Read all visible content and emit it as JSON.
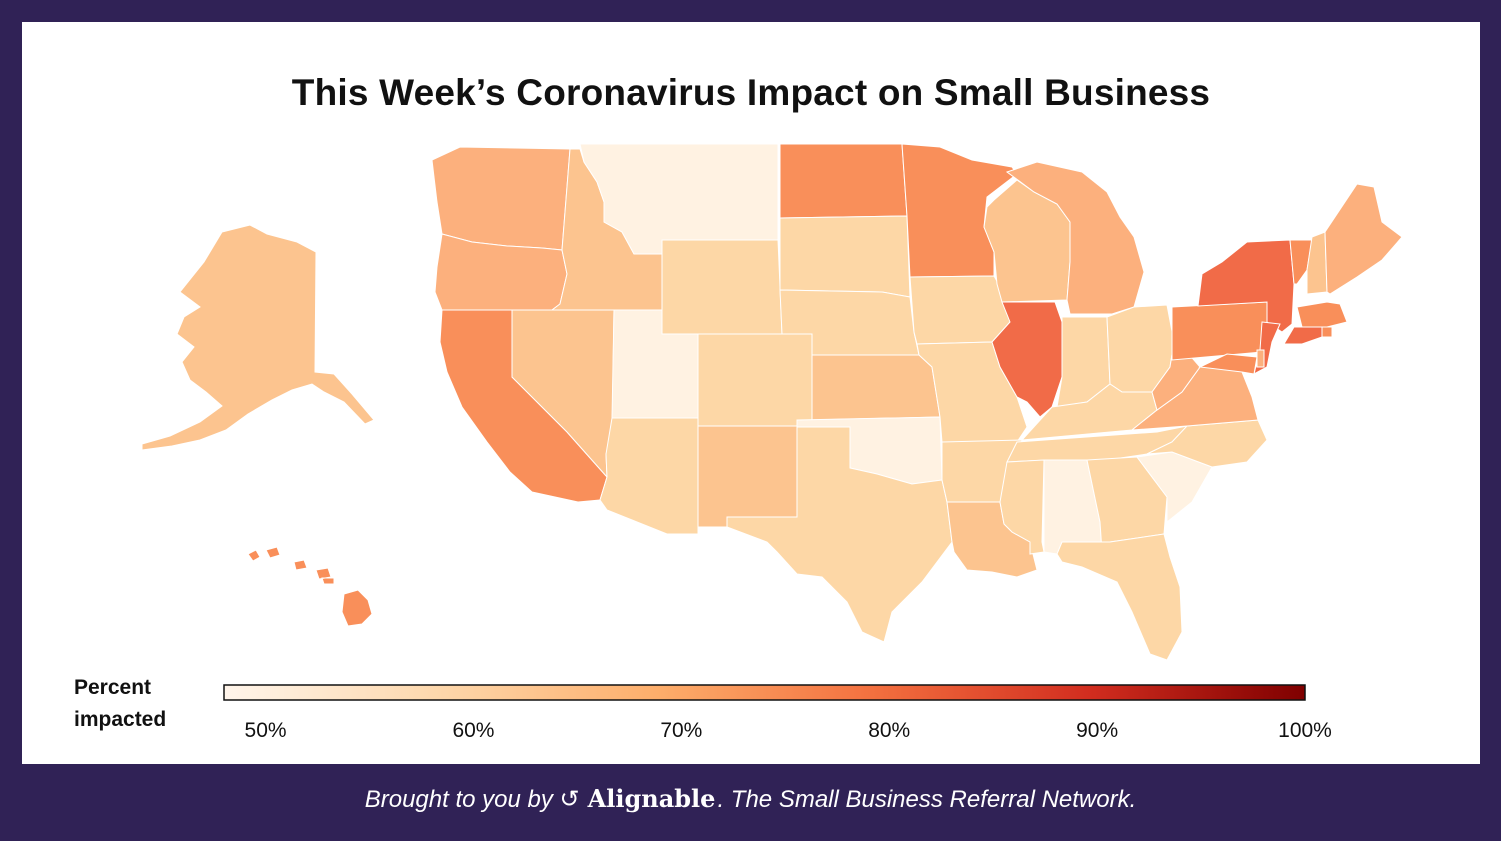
{
  "title": "This Week’s Coronavirus Impact on Small Business",
  "legend": {
    "label_line1": "Percent",
    "label_line2": "impacted",
    "ticks": [
      "50%",
      "60%",
      "70%",
      "80%",
      "90%",
      "100%"
    ],
    "range": [
      48,
      100
    ],
    "color_stops": [
      "#fff5eb",
      "#fdd7ab",
      "#fdae6b",
      "#f3703f",
      "#d22d1f",
      "#7f0000"
    ]
  },
  "footer": {
    "prefix": "Brought to you by",
    "brand": "Alignable",
    "suffix": ". The Small Business Referral Network.",
    "brand_icon": "alignable-logo-icon"
  },
  "colors": {
    "border": "#302256",
    "panel": "#ffffff",
    "level_50": "#fff2e2",
    "level_60": "#fdd7a6",
    "level_65": "#fcc48f",
    "level_70": "#fcb07d",
    "level_75": "#f98f5a",
    "level_80": "#f16b48"
  },
  "states": [
    {
      "code": "AK",
      "level": "level_65"
    },
    {
      "code": "HI",
      "level": "level_75"
    },
    {
      "code": "WA",
      "level": "level_70"
    },
    {
      "code": "OR",
      "level": "level_70"
    },
    {
      "code": "CA",
      "level": "level_75"
    },
    {
      "code": "ID",
      "level": "level_65"
    },
    {
      "code": "NV",
      "level": "level_65"
    },
    {
      "code": "MT",
      "level": "level_50"
    },
    {
      "code": "WY",
      "level": "level_60"
    },
    {
      "code": "UT",
      "level": "level_50"
    },
    {
      "code": "AZ",
      "level": "level_60"
    },
    {
      "code": "CO",
      "level": "level_60"
    },
    {
      "code": "NM",
      "level": "level_65"
    },
    {
      "code": "ND",
      "level": "level_75"
    },
    {
      "code": "SD",
      "level": "level_60"
    },
    {
      "code": "NE",
      "level": "level_60"
    },
    {
      "code": "KS",
      "level": "level_65"
    },
    {
      "code": "OK",
      "level": "level_50"
    },
    {
      "code": "TX",
      "level": "level_60"
    },
    {
      "code": "MN",
      "level": "level_75"
    },
    {
      "code": "IA",
      "level": "level_60"
    },
    {
      "code": "MO",
      "level": "level_60"
    },
    {
      "code": "AR",
      "level": "level_60"
    },
    {
      "code": "LA",
      "level": "level_65"
    },
    {
      "code": "WI",
      "level": "level_65"
    },
    {
      "code": "IL",
      "level": "level_80"
    },
    {
      "code": "MI",
      "level": "level_70"
    },
    {
      "code": "IN",
      "level": "level_60"
    },
    {
      "code": "OH",
      "level": "level_60"
    },
    {
      "code": "KY",
      "level": "level_60"
    },
    {
      "code": "TN",
      "level": "level_60"
    },
    {
      "code": "MS",
      "level": "level_60"
    },
    {
      "code": "AL",
      "level": "level_50"
    },
    {
      "code": "GA",
      "level": "level_60"
    },
    {
      "code": "FL",
      "level": "level_60"
    },
    {
      "code": "SC",
      "level": "level_50"
    },
    {
      "code": "NC",
      "level": "level_60"
    },
    {
      "code": "VA",
      "level": "level_70"
    },
    {
      "code": "WV",
      "level": "level_70"
    },
    {
      "code": "PA",
      "level": "level_75"
    },
    {
      "code": "NY",
      "level": "level_80"
    },
    {
      "code": "NJ",
      "level": "level_80"
    },
    {
      "code": "VT",
      "level": "level_75"
    },
    {
      "code": "NH",
      "level": "level_65"
    },
    {
      "code": "ME",
      "level": "level_70"
    },
    {
      "code": "MA",
      "level": "level_75"
    },
    {
      "code": "CT",
      "level": "level_80"
    },
    {
      "code": "RI",
      "level": "level_75"
    },
    {
      "code": "MD",
      "level": "level_75"
    },
    {
      "code": "DE",
      "level": "level_70"
    }
  ]
}
